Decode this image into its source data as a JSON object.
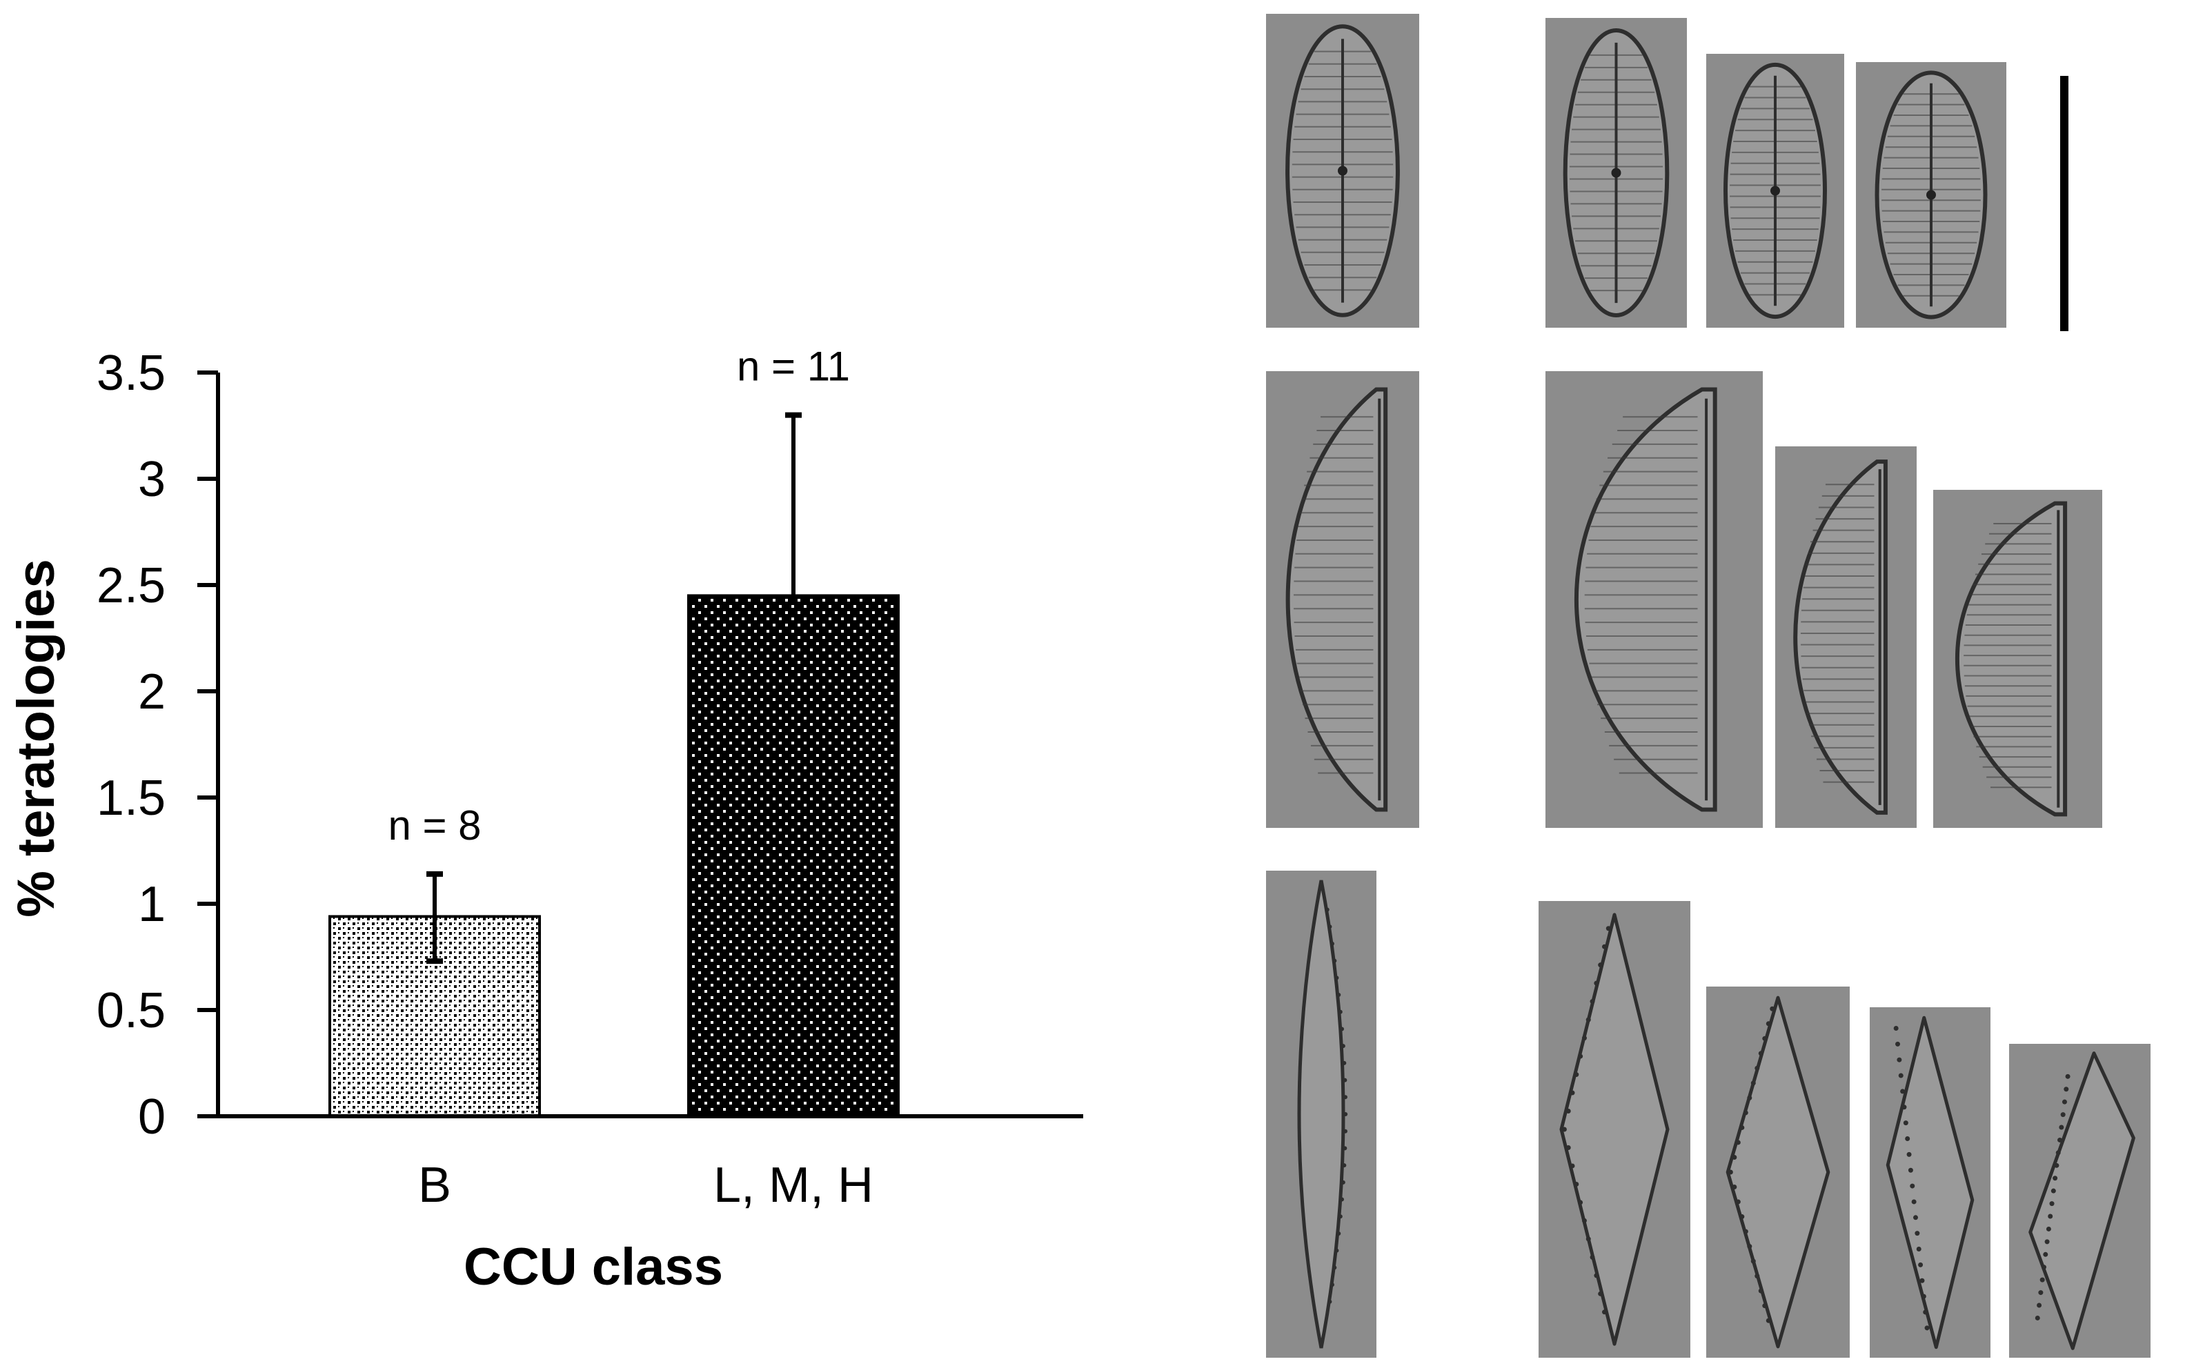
{
  "chart_data": {
    "type": "bar",
    "categories": [
      "B",
      "L, M, H"
    ],
    "values": [
      0.94,
      2.45
    ],
    "error_upper": [
      1.14,
      3.3
    ],
    "error_lower": [
      0.73,
      2.45
    ],
    "annotations": [
      "n = 8",
      "n = 11"
    ],
    "ylim": [
      0,
      3.5
    ],
    "yticks": [
      "0",
      "0.5",
      "1",
      "1.5",
      "2",
      "2.5",
      "3",
      "3.5"
    ],
    "xlabel": "CCU class",
    "ylabel": "% teratologies",
    "grid": false,
    "legend": "none",
    "bar_patterns": [
      "checker",
      "dots"
    ],
    "colors": {
      "bar_dots_fill": "#000000",
      "checker_fg": "#000000",
      "checker_bg": "#ffffff",
      "axis": "#000000"
    }
  },
  "micrograph_panel": {
    "rows": [
      {
        "name": "row-1",
        "specimens": 4
      },
      {
        "name": "row-2",
        "specimens": 4
      },
      {
        "name": "row-3",
        "specimens": 5
      }
    ],
    "scale_bar": true,
    "colors": {
      "background": "#8c8c8c",
      "valve": "#9a9a9a",
      "outline": "#2e2e2e",
      "striae": "#3a3a3a"
    }
  }
}
